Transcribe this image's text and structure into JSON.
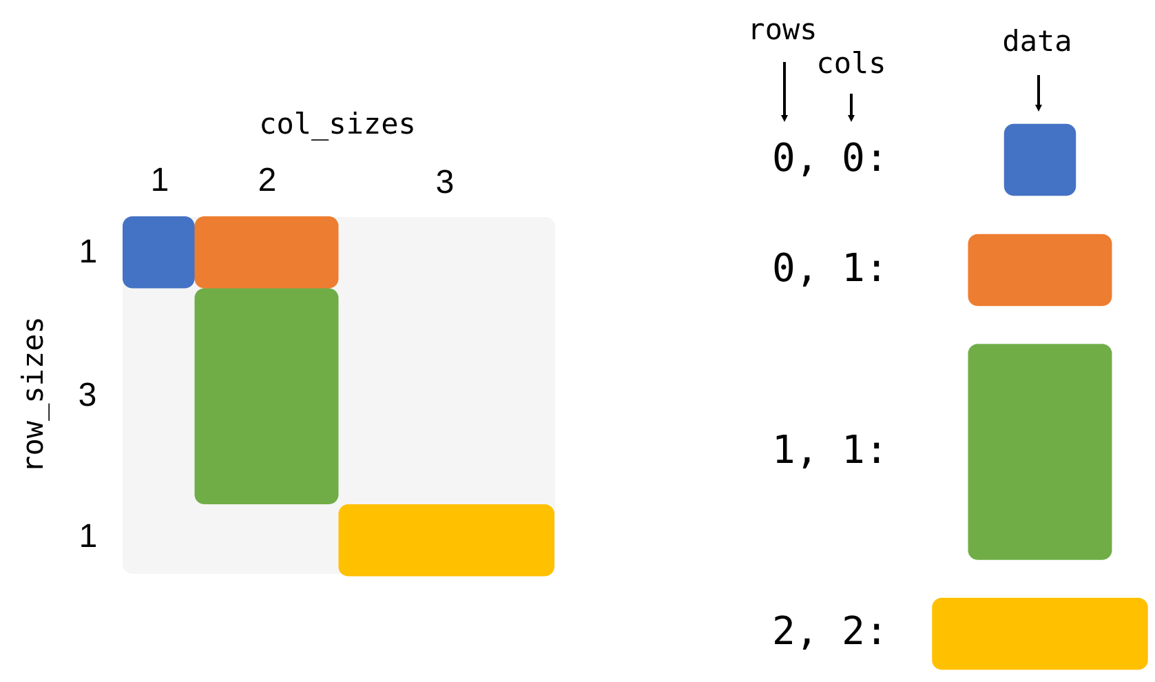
{
  "matrix": {
    "col_label": "col_sizes",
    "row_label": "row_sizes",
    "col_sizes": [
      "1",
      "2",
      "3"
    ],
    "row_sizes": [
      "1",
      "3",
      "1"
    ],
    "blocks": [
      {
        "row": 0,
        "col": 0,
        "color": "#4472C4"
      },
      {
        "row": 0,
        "col": 1,
        "color": "#ED7D31"
      },
      {
        "row": 1,
        "col": 1,
        "color": "#70AD47"
      },
      {
        "row": 2,
        "col": 2,
        "color": "#FFC000"
      }
    ],
    "background_color": "#F5F5F5"
  },
  "storage": {
    "rows_label": "rows",
    "cols_label": "cols",
    "data_label": "data",
    "entries": [
      {
        "key": "0, 0:",
        "row": 0,
        "col": 0,
        "color": "#4472C4"
      },
      {
        "key": "0, 1:",
        "row": 0,
        "col": 1,
        "color": "#ED7D31"
      },
      {
        "key": "1, 1:",
        "row": 1,
        "col": 1,
        "color": "#70AD47"
      },
      {
        "key": "2, 2:",
        "row": 2,
        "col": 2,
        "color": "#FFC000"
      }
    ]
  }
}
